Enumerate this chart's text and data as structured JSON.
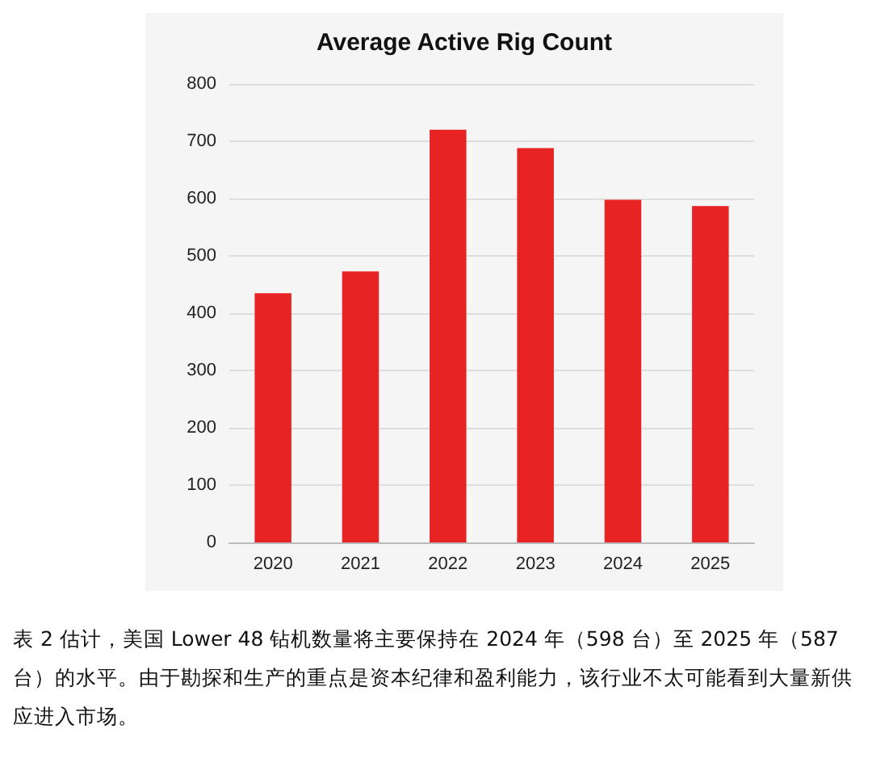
{
  "chart_data": {
    "type": "bar",
    "title": "Average Active Rig Count",
    "categories": [
      "2020",
      "2021",
      "2022",
      "2023",
      "2024",
      "2025"
    ],
    "values": [
      435,
      473,
      720,
      688,
      598,
      587
    ],
    "color": "#e82323",
    "ylim": [
      0,
      800
    ],
    "yticks": [
      0,
      100,
      200,
      300,
      400,
      500,
      600,
      700,
      800
    ],
    "grid": "y",
    "annotations": [
      "表 2 估计，美国 Lower 48 钻机数量将主要保持在 2024 年（598 台）至 2025 年（587 台）的水平。由于勘探和生产的重点是资本纪律和盈利能力，该行业不太可能看到大量新供应进入市场。"
    ]
  }
}
